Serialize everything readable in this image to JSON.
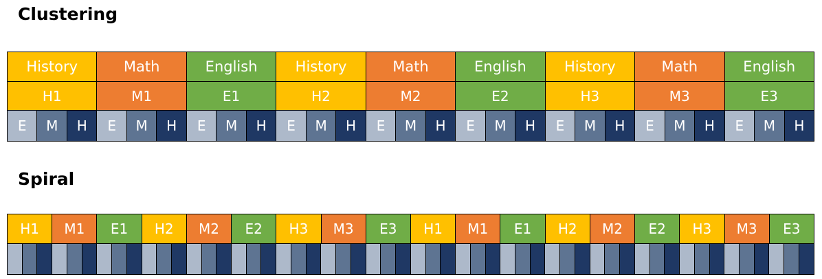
{
  "sections": {
    "clustering": {
      "title": "Clustering",
      "subjects": [
        {
          "label": "History",
          "kind": "history"
        },
        {
          "label": "Math",
          "kind": "math"
        },
        {
          "label": "English",
          "kind": "english"
        },
        {
          "label": "History",
          "kind": "history"
        },
        {
          "label": "Math",
          "kind": "math"
        },
        {
          "label": "English",
          "kind": "english"
        },
        {
          "label": "History",
          "kind": "history"
        },
        {
          "label": "Math",
          "kind": "math"
        },
        {
          "label": "English",
          "kind": "english"
        }
      ],
      "units": [
        {
          "label": "H1",
          "kind": "history"
        },
        {
          "label": "M1",
          "kind": "math"
        },
        {
          "label": "E1",
          "kind": "english"
        },
        {
          "label": "H2",
          "kind": "history"
        },
        {
          "label": "M2",
          "kind": "math"
        },
        {
          "label": "E2",
          "kind": "english"
        },
        {
          "label": "H3",
          "kind": "history"
        },
        {
          "label": "M3",
          "kind": "math"
        },
        {
          "label": "E3",
          "kind": "english"
        }
      ],
      "level_labels": [
        "E",
        "M",
        "H"
      ]
    },
    "spiral": {
      "title": "Spiral",
      "units": [
        {
          "label": "H1",
          "kind": "history"
        },
        {
          "label": "M1",
          "kind": "math"
        },
        {
          "label": "E1",
          "kind": "english"
        },
        {
          "label": "H2",
          "kind": "history"
        },
        {
          "label": "M2",
          "kind": "math"
        },
        {
          "label": "E2",
          "kind": "english"
        },
        {
          "label": "H3",
          "kind": "history"
        },
        {
          "label": "M3",
          "kind": "math"
        },
        {
          "label": "E3",
          "kind": "english"
        },
        {
          "label": "H1",
          "kind": "history"
        },
        {
          "label": "M1",
          "kind": "math"
        },
        {
          "label": "E1",
          "kind": "english"
        },
        {
          "label": "H2",
          "kind": "history"
        },
        {
          "label": "M2",
          "kind": "math"
        },
        {
          "label": "E2",
          "kind": "english"
        },
        {
          "label": "H3",
          "kind": "history"
        },
        {
          "label": "M3",
          "kind": "math"
        },
        {
          "label": "E3",
          "kind": "english"
        }
      ],
      "level_kinds": [
        "e",
        "m",
        "h"
      ]
    }
  },
  "colors": {
    "history": "#FFC000",
    "math": "#ED7D31",
    "english": "#70AD47",
    "level_e": "#ADB9CA",
    "level_m": "#5E7492",
    "level_h": "#1F3864"
  }
}
